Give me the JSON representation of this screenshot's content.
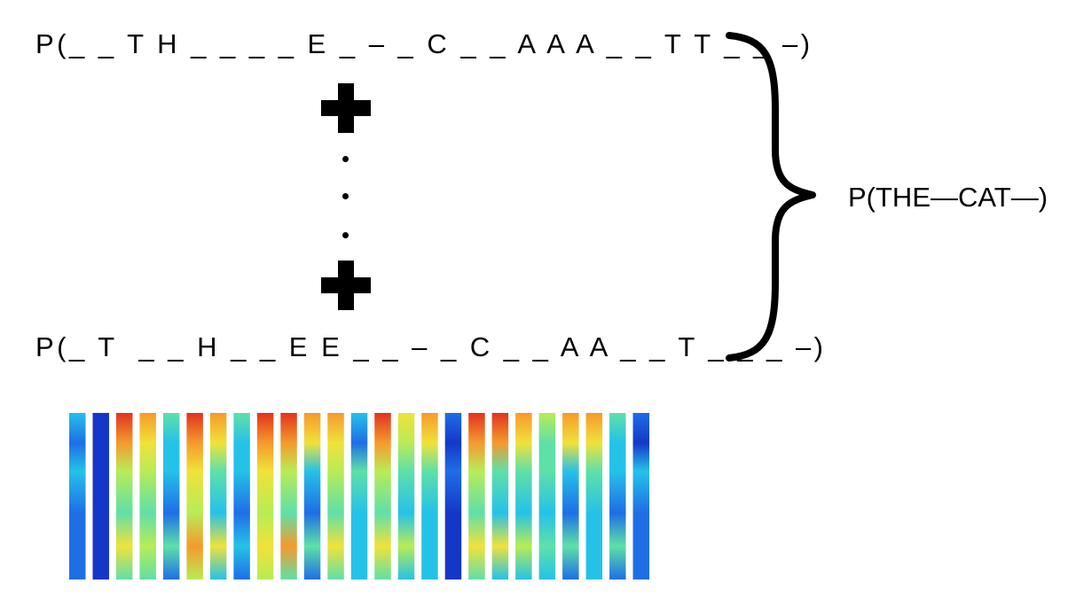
{
  "top_path": "P(_ _ T H _ _ _ _ E _ – _ C _ _ A A A _ _ T T _ _ –)",
  "bottom_path": "P(_ T  _ _ H _ _ E E _ _ – _ C _ _ A A _ _ T _ _ _ –)",
  "result": "P(THE—CAT—)",
  "icons": [
    "plus-icon",
    "ellipsis-dots",
    "curly-brace"
  ],
  "spectrogram": {
    "colors": [
      "#1537c8",
      "#1e6ee6",
      "#25c2e8",
      "#5fe0a8",
      "#b8ec56",
      "#f0e23a",
      "#f59a2c",
      "#e0341e"
    ],
    "frames": [
      {
        "top": 2,
        "mid": 2,
        "low": 1
      },
      {
        "top": 0,
        "mid": 0,
        "low": 0
      },
      {
        "top": 7,
        "mid": 4,
        "low": 5
      },
      {
        "top": 6,
        "mid": 4,
        "low": 4
      },
      {
        "top": 3,
        "mid": 2,
        "low": 3
      },
      {
        "top": 7,
        "mid": 5,
        "low": 6
      },
      {
        "top": 6,
        "mid": 3,
        "low": 5
      },
      {
        "top": 3,
        "mid": 2,
        "low": 2
      },
      {
        "top": 7,
        "mid": 5,
        "low": 5
      },
      {
        "top": 7,
        "mid": 4,
        "low": 6
      },
      {
        "top": 6,
        "mid": 2,
        "low": 3
      },
      {
        "top": 6,
        "mid": 4,
        "low": 5
      },
      {
        "top": 2,
        "mid": 3,
        "low": 2
      },
      {
        "top": 7,
        "mid": 4,
        "low": 5
      },
      {
        "top": 5,
        "mid": 3,
        "low": 4
      },
      {
        "top": 6,
        "mid": 3,
        "low": 2
      },
      {
        "top": 1,
        "mid": 1,
        "low": 0
      },
      {
        "top": 7,
        "mid": 4,
        "low": 5
      },
      {
        "top": 7,
        "mid": 3,
        "low": 5
      },
      {
        "top": 6,
        "mid": 3,
        "low": 4
      },
      {
        "top": 4,
        "mid": 3,
        "low": 3
      },
      {
        "top": 6,
        "mid": 2,
        "low": 3
      },
      {
        "top": 6,
        "mid": 3,
        "low": 2
      },
      {
        "top": 3,
        "mid": 2,
        "low": 3
      },
      {
        "top": 1,
        "mid": 2,
        "low": 1
      }
    ]
  }
}
